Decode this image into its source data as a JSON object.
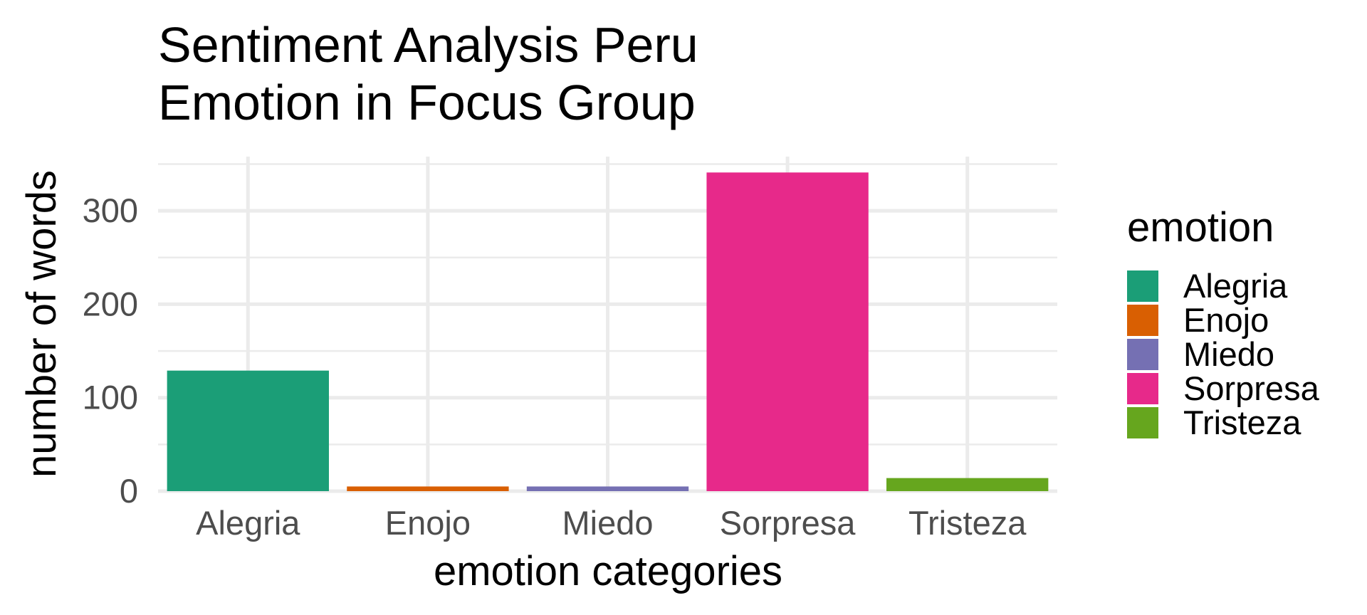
{
  "chart_data": {
    "type": "bar",
    "title": [
      "Sentiment Analysis Peru",
      "Emotion in Focus Group"
    ],
    "xlabel": "emotion categories",
    "ylabel": "number of words",
    "categories": [
      "Alegria",
      "Enojo",
      "Miedo",
      "Sorpresa",
      "Tristeza"
    ],
    "values": [
      129,
      5,
      5,
      341,
      14
    ],
    "colors": [
      "#1b9e77",
      "#d95f02",
      "#7570b3",
      "#e7298a",
      "#66a61e"
    ],
    "ylim": [
      0,
      358
    ],
    "yticks": [
      0,
      100,
      200,
      300
    ],
    "ytick_labels": [
      "0",
      "100",
      "200",
      "300"
    ],
    "grid": true,
    "legend": {
      "title": "emotion",
      "position": "right",
      "items": [
        "Alegria",
        "Enojo",
        "Miedo",
        "Sorpresa",
        "Tristeza"
      ]
    }
  }
}
